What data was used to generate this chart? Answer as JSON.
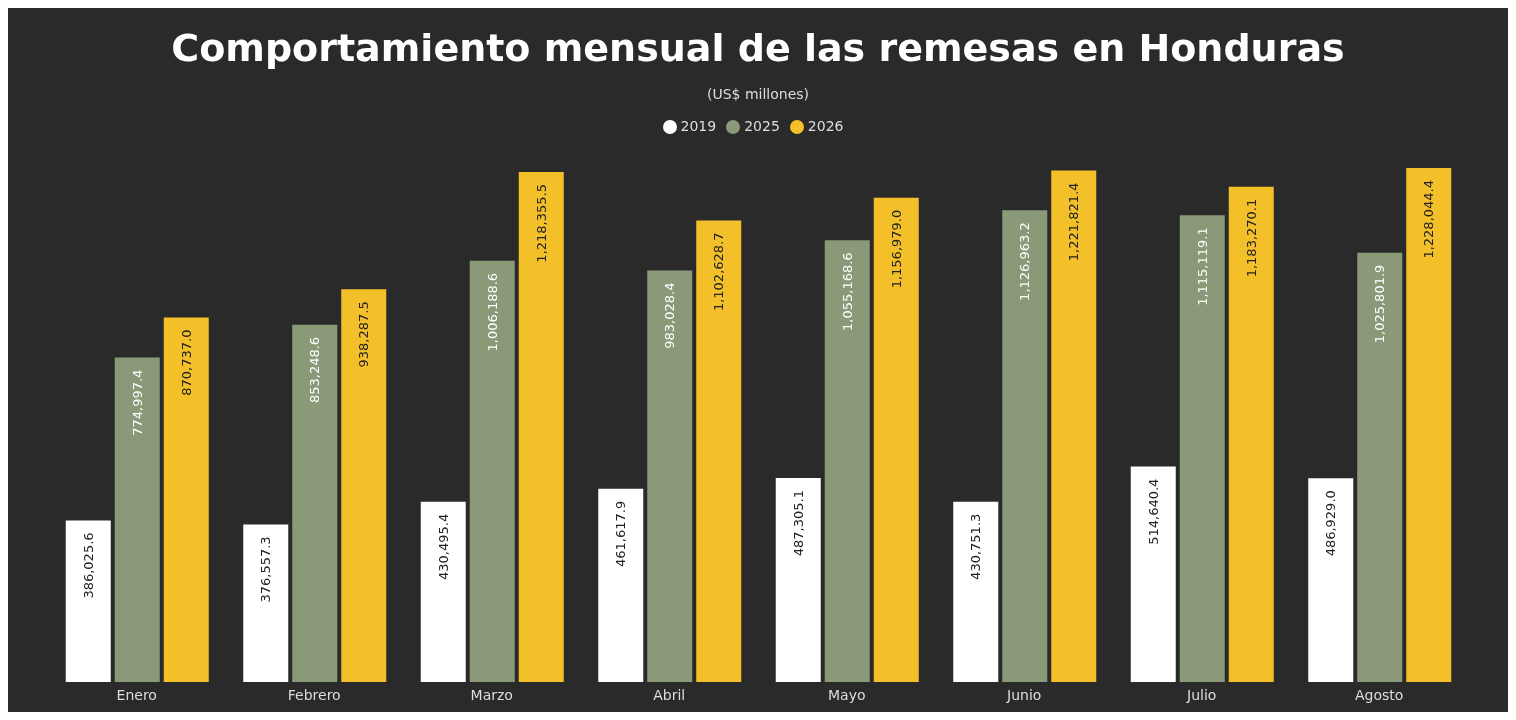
{
  "chart_data": {
    "type": "bar",
    "title": "Comportamiento mensual de las remesas en Honduras",
    "subtitle": "(US$ millones)",
    "categories": [
      "Enero",
      "Febrero",
      "Marzo",
      "Abril",
      "Mayo",
      "Junio",
      "Julio",
      "Agosto"
    ],
    "series": [
      {
        "name": "2019",
        "color": "#ffffff",
        "values": [
          386025.6,
          376557.3,
          430495.4,
          461617.9,
          487305.1,
          430751.3,
          514640.4,
          486929.0
        ],
        "value_labels": [
          "386,025.6",
          "376,557.3",
          "430,495.4",
          "461,617.9",
          "487,305.1",
          "430,751.3",
          "514,640.4",
          "486,929.0"
        ]
      },
      {
        "name": "2025",
        "color": "#8a9a78",
        "values": [
          774997.4,
          853248.6,
          1006188.6,
          983028.4,
          1055168.6,
          1126963.2,
          1115119.1,
          1025801.9
        ],
        "value_labels": [
          "774,997.4",
          "853,248.6",
          "1,006,188.6",
          "983,028.4",
          "1,055,168.6",
          "1,126,963.2",
          "1,115,119.1",
          "1,025,801.9"
        ]
      },
      {
        "name": "2026",
        "color": "#f4c02a",
        "values": [
          870737.0,
          938287.5,
          1218355.5,
          1102628.7,
          1156979.0,
          1221821.4,
          1183270.1,
          1228044.4
        ],
        "value_labels": [
          "870,737.0",
          "938,287.5",
          "1,218,355.5",
          "1,102,628.7",
          "1,156,979.0",
          "1,221,821.4",
          "1,183,270.1",
          "1,228,044.4"
        ]
      }
    ],
    "legend": "top"
  }
}
